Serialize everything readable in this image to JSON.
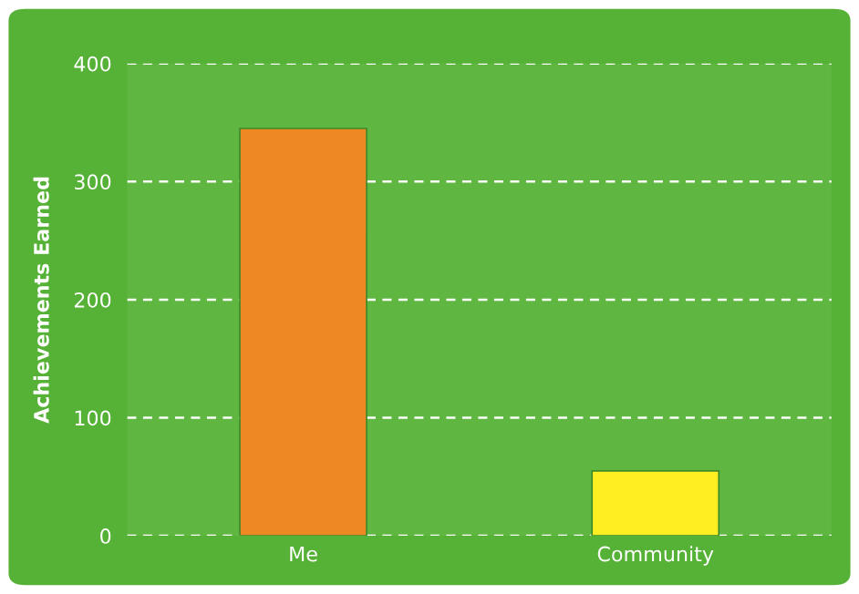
{
  "chart_data": {
    "type": "bar",
    "ylabel": "Achievements Earned",
    "categories": [
      "Me",
      "Community"
    ],
    "values": [
      345,
      55
    ],
    "colors": [
      "#ee8822",
      "#ffee22"
    ],
    "ylim": [
      0,
      400
    ],
    "yticks": [
      0,
      100,
      200,
      300,
      400
    ],
    "grid": "y"
  }
}
